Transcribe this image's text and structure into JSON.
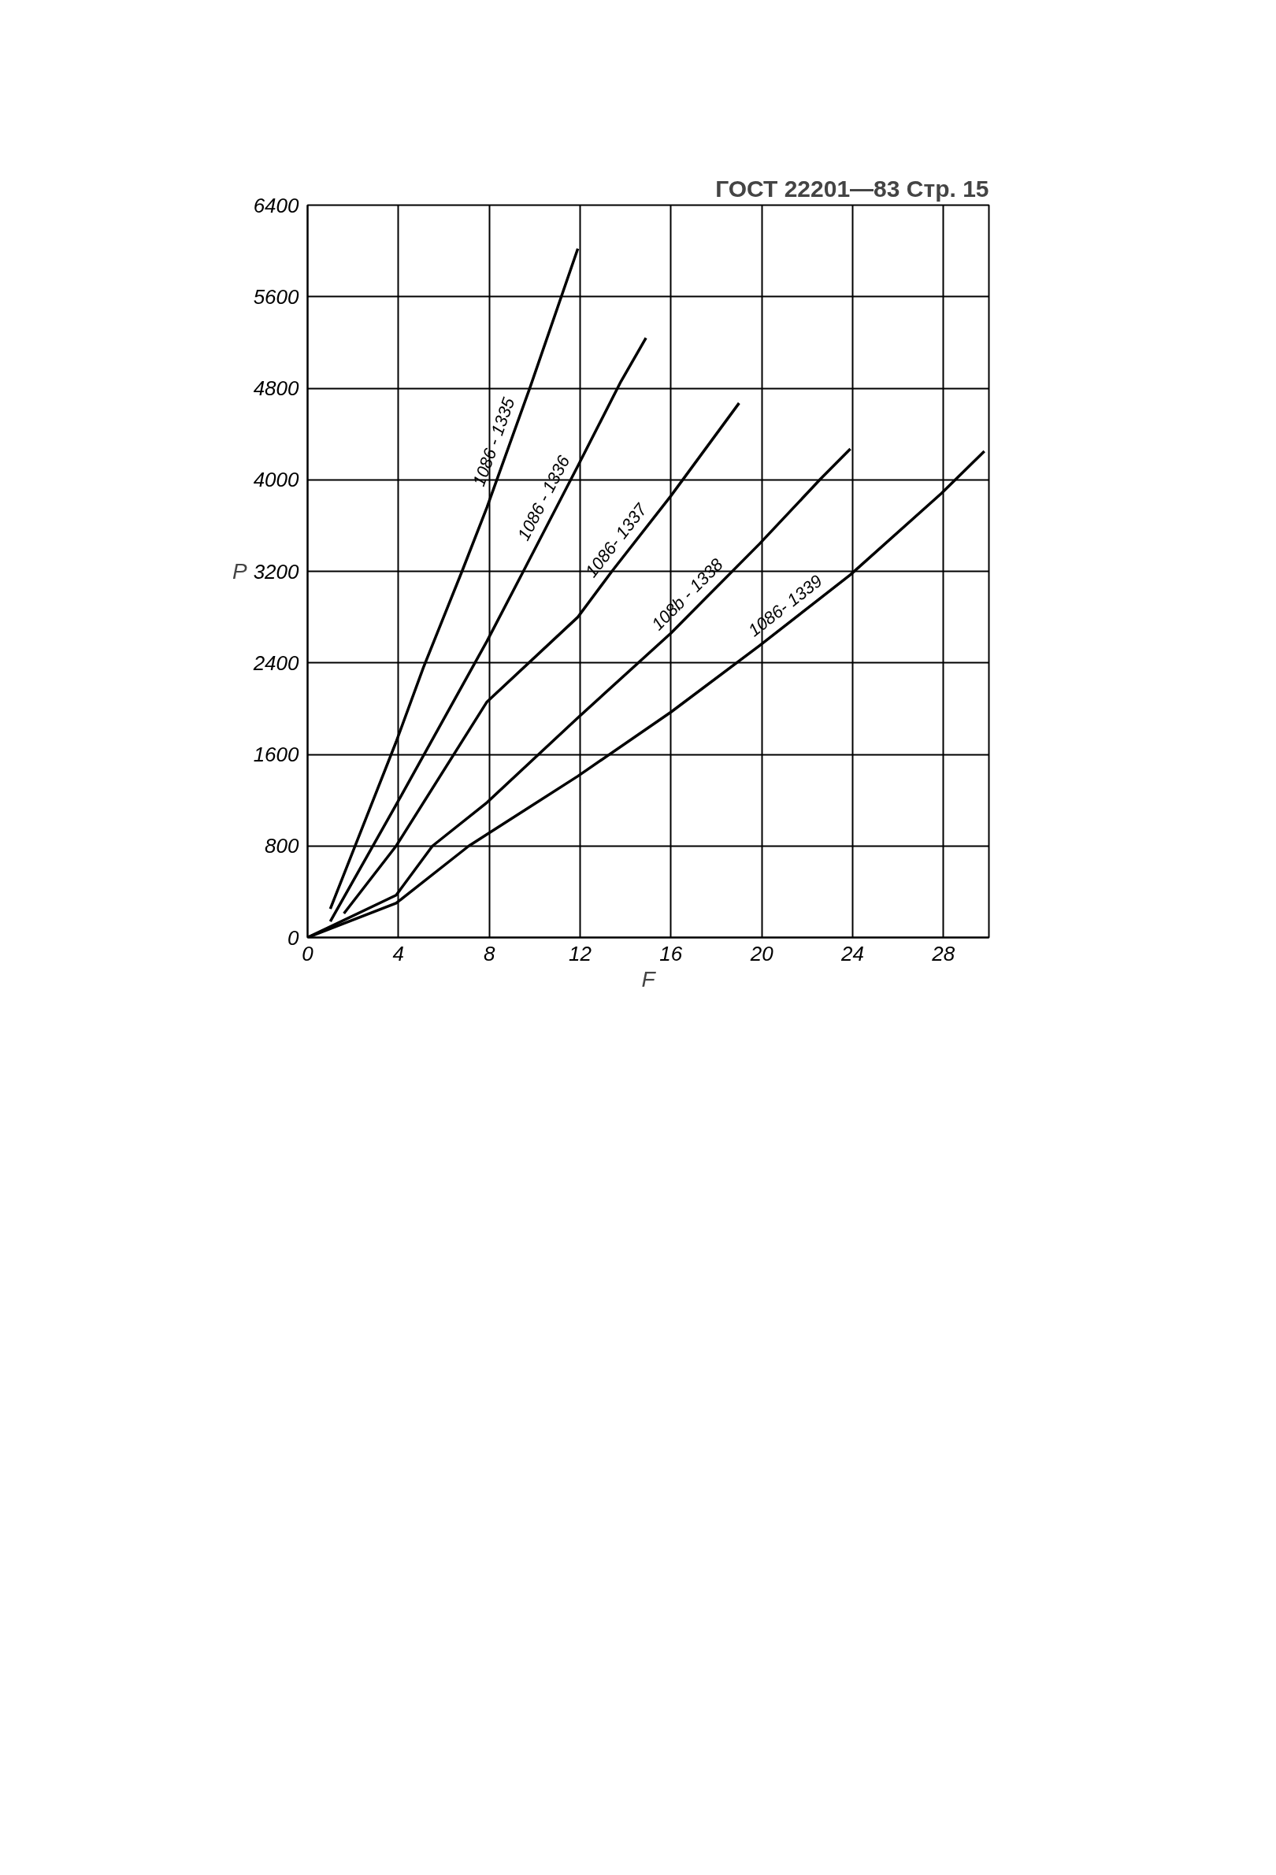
{
  "chart_data": {
    "type": "line",
    "title": "ГОСТ 22201—83 Стр. 15",
    "xlabel": "F",
    "ylabel": "P",
    "xlim": [
      0,
      30
    ],
    "ylim": [
      0,
      6400
    ],
    "xticks": [
      0,
      4,
      8,
      12,
      16,
      20,
      24,
      28
    ],
    "yticks": [
      0,
      800,
      1600,
      2400,
      3200,
      4000,
      4800,
      5600,
      6400
    ],
    "grid": true,
    "marker": "none",
    "line_style": "solid",
    "series": [
      {
        "name": "1086 - 1335",
        "color": "#000000",
        "x": [
          1.0,
          3.9,
          5.1,
          6.8,
          7.9,
          9.8,
          11.9
        ],
        "values": [
          250,
          1710,
          2360,
          3200,
          3760,
          4810,
          6020
        ]
      },
      {
        "name": "1086 - 1336",
        "color": "#000000",
        "x": [
          1.0,
          3.9,
          7.9,
          9.5,
          11.9,
          13.8,
          14.9
        ],
        "values": [
          140,
          1160,
          2590,
          3200,
          4120,
          4860,
          5240
        ]
      },
      {
        "name": "1086- 1337",
        "color": "#000000",
        "x": [
          1.6,
          3.9,
          7.9,
          11.9,
          13.4,
          16.0,
          19.0
        ],
        "values": [
          210,
          800,
          2060,
          2800,
          3200,
          3860,
          4670
        ]
      },
      {
        "name": "108b - 1338",
        "color": "#000000",
        "x": [
          0,
          3.9,
          5.5,
          7.9,
          11.9,
          16.0,
          19.9,
          22.6,
          23.9
        ],
        "values": [
          0,
          370,
          800,
          1180,
          1920,
          2660,
          3440,
          4010,
          4270
        ]
      },
      {
        "name": "1086- 1339",
        "color": "#000000",
        "x": [
          0,
          3.9,
          7.1,
          11.9,
          16.0,
          19.9,
          23.9,
          27.9,
          29.8
        ],
        "values": [
          0,
          300,
          800,
          1410,
          1970,
          2550,
          3170,
          3880,
          4250
        ]
      }
    ]
  }
}
